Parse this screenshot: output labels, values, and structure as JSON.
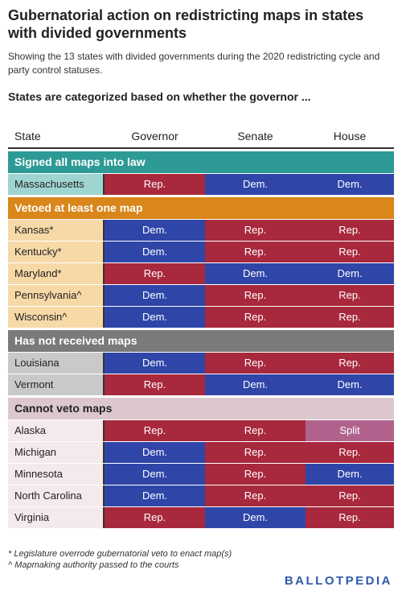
{
  "header": {
    "title": "Gubernatorial action on redistricting maps in states with divided governments",
    "subtitle": "Showing the 13 states with divided governments during the 2020 redistricting cycle and party control statuses.",
    "question": "States are categorized based on whether the governor ..."
  },
  "table": {
    "columns": [
      "State",
      "Governor",
      "Senate",
      "House"
    ],
    "sections": [
      {
        "title": "Signed all maps into law",
        "color": "#2e9a96",
        "text_color": "#ffffff",
        "state_color": "#9fd5d0",
        "rows": [
          {
            "state": "Massachusetts",
            "cells": [
              {
                "text": "Rep.",
                "color": "#a8283d"
              },
              {
                "text": "Dem.",
                "color": "#2f46a8"
              },
              {
                "text": "Dem.",
                "color": "#2f46a8"
              }
            ]
          }
        ]
      },
      {
        "title": "Vetoed at least one map",
        "color": "#d9861b",
        "text_color": "#ffffff",
        "state_color": "#f7d9a7",
        "rows": [
          {
            "state": "Kansas*",
            "cells": [
              {
                "text": "Dem.",
                "color": "#2f46a8"
              },
              {
                "text": "Rep.",
                "color": "#a8283d"
              },
              {
                "text": "Rep.",
                "color": "#a8283d"
              }
            ]
          },
          {
            "state": "Kentucky*",
            "cells": [
              {
                "text": "Dem.",
                "color": "#2f46a8"
              },
              {
                "text": "Rep.",
                "color": "#a8283d"
              },
              {
                "text": "Rep.",
                "color": "#a8283d"
              }
            ]
          },
          {
            "state": "Maryland*",
            "cells": [
              {
                "text": "Rep.",
                "color": "#a8283d"
              },
              {
                "text": "Dem.",
                "color": "#2f46a8"
              },
              {
                "text": "Dem.",
                "color": "#2f46a8"
              }
            ]
          },
          {
            "state": "Pennsylvania^",
            "cells": [
              {
                "text": "Dem.",
                "color": "#2f46a8"
              },
              {
                "text": "Rep.",
                "color": "#a8283d"
              },
              {
                "text": "Rep.",
                "color": "#a8283d"
              }
            ]
          },
          {
            "state": "Wisconsin^",
            "cells": [
              {
                "text": "Dem.",
                "color": "#2f46a8"
              },
              {
                "text": "Rep.",
                "color": "#a8283d"
              },
              {
                "text": "Rep.",
                "color": "#a8283d"
              }
            ]
          }
        ]
      },
      {
        "title": "Has not received maps",
        "color": "#7a7a7a",
        "text_color": "#ffffff",
        "state_color": "#c9c9c9",
        "rows": [
          {
            "state": "Louisiana",
            "cells": [
              {
                "text": "Dem.",
                "color": "#2f46a8"
              },
              {
                "text": "Rep.",
                "color": "#a8283d"
              },
              {
                "text": "Rep.",
                "color": "#a8283d"
              }
            ]
          },
          {
            "state": "Vermont",
            "cells": [
              {
                "text": "Rep.",
                "color": "#a8283d"
              },
              {
                "text": "Dem.",
                "color": "#2f46a8"
              },
              {
                "text": "Dem.",
                "color": "#2f46a8"
              }
            ]
          }
        ]
      },
      {
        "title": "Cannot veto maps",
        "color": "#dcc8cc",
        "text_color": "#222222",
        "state_color": "#f4e9eb",
        "rows": [
          {
            "state": "Alaska",
            "cells": [
              {
                "text": "Rep.",
                "color": "#a8283d"
              },
              {
                "text": "Rep.",
                "color": "#a8283d"
              },
              {
                "text": "Split",
                "color": "#b0628d"
              }
            ]
          },
          {
            "state": "Michigan",
            "cells": [
              {
                "text": "Dem.",
                "color": "#2f46a8"
              },
              {
                "text": "Rep.",
                "color": "#a8283d"
              },
              {
                "text": "Rep.",
                "color": "#a8283d"
              }
            ]
          },
          {
            "state": "Minnesota",
            "cells": [
              {
                "text": "Dem.",
                "color": "#2f46a8"
              },
              {
                "text": "Rep.",
                "color": "#a8283d"
              },
              {
                "text": "Dem.",
                "color": "#2f46a8"
              }
            ]
          },
          {
            "state": "North Carolina",
            "cells": [
              {
                "text": "Dem.",
                "color": "#2f46a8"
              },
              {
                "text": "Rep.",
                "color": "#a8283d"
              },
              {
                "text": "Rep.",
                "color": "#a8283d"
              }
            ]
          },
          {
            "state": "Virginia",
            "cells": [
              {
                "text": "Rep.",
                "color": "#a8283d"
              },
              {
                "text": "Dem.",
                "color": "#2f46a8"
              },
              {
                "text": "Rep.",
                "color": "#a8283d"
              }
            ]
          }
        ]
      }
    ]
  },
  "footer": {
    "notes": [
      "* Legislature overrode gubernatorial veto to enact map(s)",
      "^ Mapmaking authority passed to the courts"
    ],
    "logo": "BALLOTPEDIA"
  }
}
